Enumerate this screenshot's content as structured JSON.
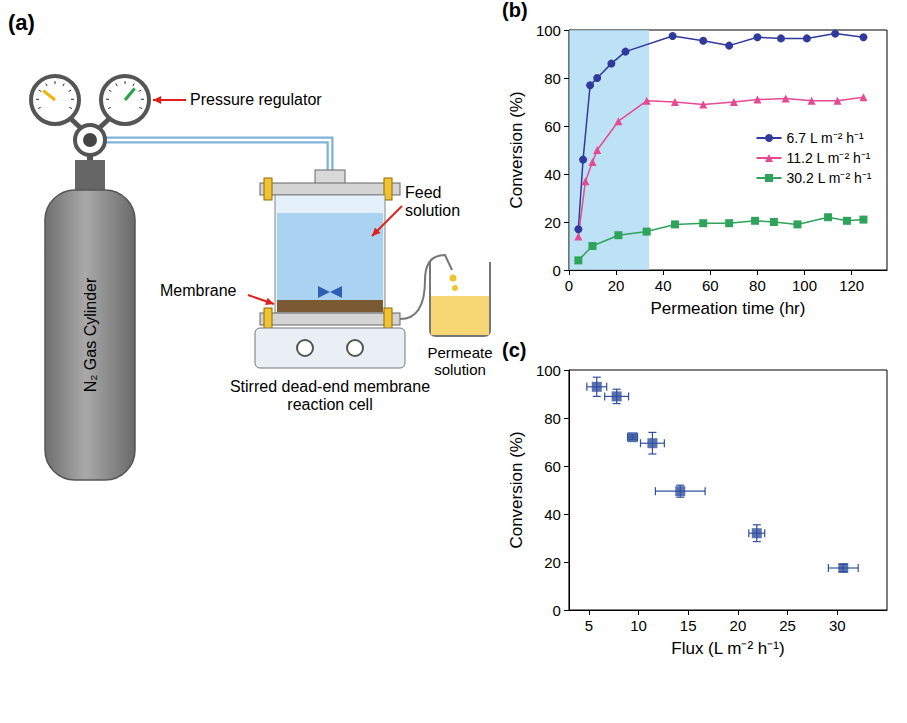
{
  "diagram": {
    "panel": "(a)",
    "labels": {
      "regulator": "Pressure regulator",
      "cylinder": "N₂ Gas Cylinder",
      "feed": "Feed solution",
      "membrane": "Membrane",
      "permeate": "Permeate solution",
      "cell": "Stirred dead-end membrane reaction cell"
    }
  },
  "chart_data": [
    {
      "type": "line",
      "panel": "(b)",
      "x_label": "Permeation time (hr)",
      "y_label": "Conversion (%)",
      "xlim": [
        0,
        135
      ],
      "xticks": [
        0,
        20,
        40,
        60,
        80,
        100,
        120
      ],
      "ylim": [
        0,
        100
      ],
      "yticks": [
        0,
        20,
        40,
        60,
        80,
        100
      ],
      "grid": false,
      "legend": "right",
      "shaded_x": [
        0,
        34
      ],
      "series": [
        {
          "name": "6.7 L m⁻² h⁻¹",
          "color": "#2f3a9c",
          "marker": "circle",
          "x": [
            4,
            6,
            9,
            12,
            18,
            24,
            44,
            57,
            68,
            80,
            90,
            101,
            113,
            125
          ],
          "values": [
            17,
            46,
            77,
            80,
            86,
            91,
            97.5,
            95.5,
            93.5,
            97,
            96.5,
            96.5,
            98.5,
            97
          ]
        },
        {
          "name": "11.2 L m⁻² h⁻¹",
          "color": "#e64a93",
          "marker": "triangle",
          "x": [
            4,
            7,
            10,
            12,
            21,
            33,
            45,
            57,
            70,
            80,
            92,
            103,
            114,
            125
          ],
          "values": [
            14,
            37,
            45,
            50,
            62,
            70.5,
            70,
            69,
            70,
            71,
            71.5,
            70.5,
            70.5,
            72
          ]
        },
        {
          "name": "30.2 L m⁻² h⁻¹",
          "color": "#2ea35a",
          "marker": "square",
          "x": [
            4,
            10,
            21,
            33,
            45,
            57,
            68,
            79,
            87,
            97,
            110,
            118,
            125
          ],
          "values": [
            4,
            10,
            14.5,
            16,
            19,
            19.5,
            19.5,
            20.5,
            20,
            19,
            22,
            20.5,
            21
          ]
        }
      ]
    },
    {
      "type": "scatter",
      "panel": "(c)",
      "x_label": "Flux (L m⁻² h⁻¹)",
      "y_label": "Conversion (%)",
      "xlim": [
        3,
        35
      ],
      "xticks": [
        5,
        10,
        15,
        20,
        25,
        30
      ],
      "ylim": [
        0,
        100
      ],
      "yticks": [
        0,
        20,
        40,
        60,
        80,
        100
      ],
      "grid": false,
      "color": "#2f4f9f",
      "marker": "square",
      "x": [
        5.8,
        7.8,
        9.4,
        11.4,
        14.2,
        21.9,
        30.6
      ],
      "values": [
        93,
        89,
        72,
        69.5,
        49.5,
        32,
        17.5
      ],
      "x_error": [
        1,
        1.2,
        0.5,
        1.2,
        2.5,
        0.8,
        1.5
      ],
      "y_error": [
        4,
        3,
        1,
        4.5,
        2.5,
        3.5,
        1.5
      ]
    }
  ]
}
